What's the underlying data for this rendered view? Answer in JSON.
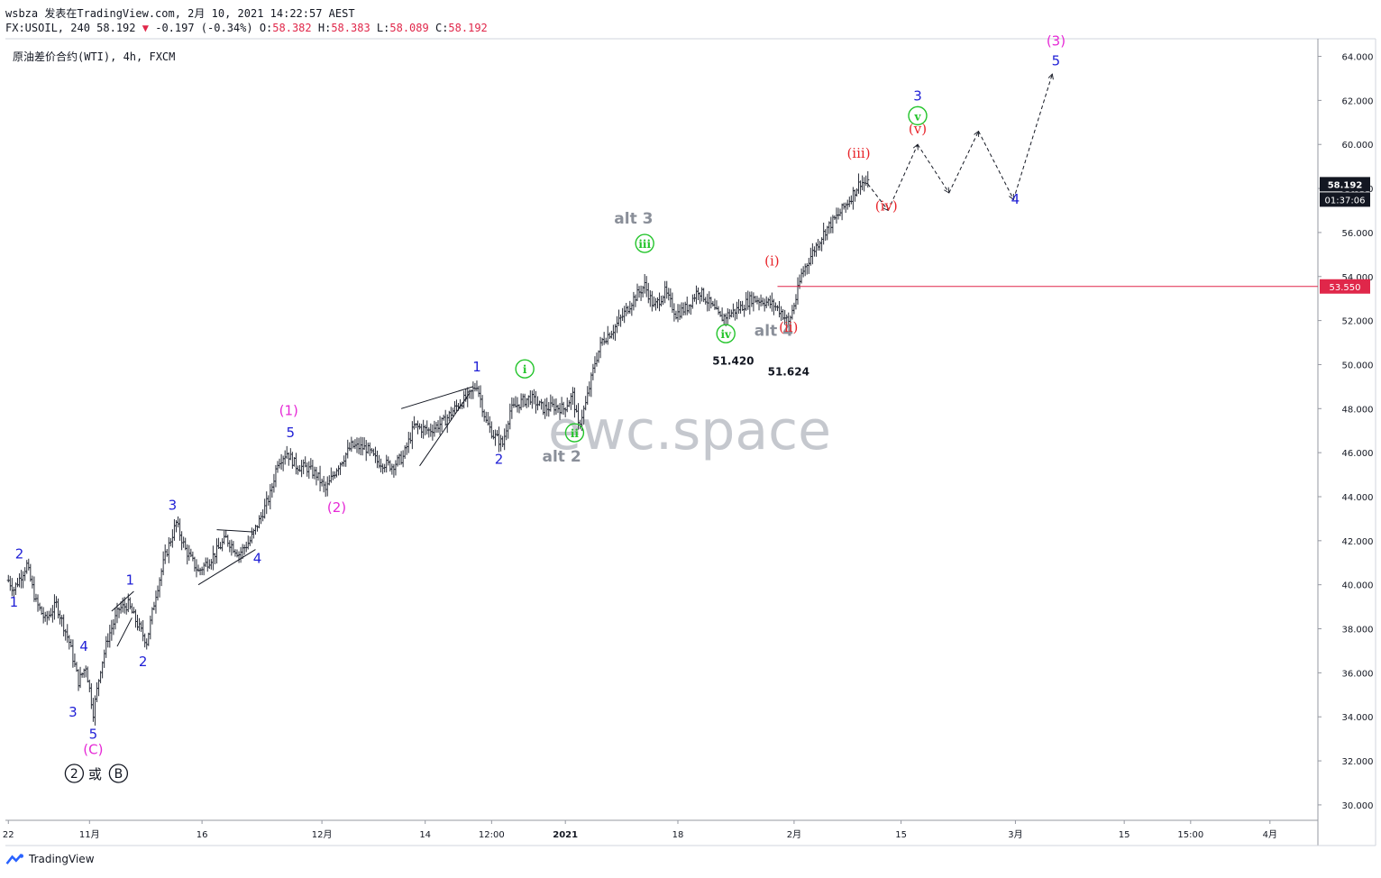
{
  "header": {
    "user": "wsbza",
    "published_text": "发表在TradingView.com, 2月 10, 2021 14:22:57 AEST",
    "symbol": "FX:USOIL, 240",
    "last": "58.192",
    "change": "-0.197 (-0.34%)",
    "ohlc": {
      "o_label": "O:",
      "o": "58.382",
      "h_label": "H:",
      "h": "58.383",
      "l_label": "L:",
      "l": "58.089",
      "c_label": "C:",
      "c": "58.192"
    }
  },
  "symbol_title": "原油差价合约(WTI), 4h, FXCM",
  "watermark": "ewc.space",
  "footer": {
    "brand": "TradingView"
  },
  "colors": {
    "blue": "#1f1fd6",
    "magenta": "#e62ad6",
    "red": "#e8242a",
    "green": "#22c42a",
    "gray": "#8a8f99",
    "price_tag": "#131722",
    "level_line": "#e0274a",
    "bars": "#2a2e39"
  },
  "chart_data": {
    "type": "ohlc",
    "symbol": "USOIL 4h",
    "y_axis": {
      "ticks": [
        "30.000",
        "32.000",
        "34.000",
        "36.000",
        "38.000",
        "40.000",
        "42.000",
        "44.000",
        "46.000",
        "48.000",
        "50.000",
        "52.000",
        "54.000",
        "56.000",
        "58.000",
        "60.000",
        "62.000",
        "64.000"
      ],
      "ylim": [
        29.3,
        64.8
      ]
    },
    "x_axis": {
      "ticks": [
        {
          "label": "22",
          "i": 0
        },
        {
          "label": "11月",
          "i": 44
        },
        {
          "label": "16",
          "i": 105
        },
        {
          "label": "12月",
          "i": 170
        },
        {
          "label": "14",
          "i": 226
        },
        {
          "label": "12:00",
          "i": 262
        },
        {
          "label": "2021",
          "i": 302
        },
        {
          "label": "18",
          "i": 363
        },
        {
          "label": "2月",
          "i": 426
        },
        {
          "label": "15",
          "i": 484
        },
        {
          "label": "3月",
          "i": 546
        },
        {
          "label": "15",
          "i": 605
        },
        {
          "label": "15:00",
          "i": 641
        },
        {
          "label": "4月",
          "i": 684
        }
      ],
      "ilim": [
        -1.6,
        710
      ]
    },
    "anchors": [
      [
        0,
        40.2
      ],
      [
        3,
        39.8
      ],
      [
        10,
        40.9
      ],
      [
        15,
        39.2
      ],
      [
        20,
        38.4
      ],
      [
        26,
        39.1
      ],
      [
        33,
        37.4
      ],
      [
        38,
        35.6
      ],
      [
        42,
        36.3
      ],
      [
        46,
        34.2
      ],
      [
        50,
        36.2
      ],
      [
        54,
        37.6
      ],
      [
        60,
        38.9
      ],
      [
        65,
        39.1
      ],
      [
        70,
        38.2
      ],
      [
        75,
        37.4
      ],
      [
        80,
        39.6
      ],
      [
        85,
        41.3
      ],
      [
        91,
        42.8
      ],
      [
        96,
        41.6
      ],
      [
        103,
        40.6
      ],
      [
        110,
        41.2
      ],
      [
        118,
        42.1
      ],
      [
        125,
        41.4
      ],
      [
        131,
        42.0
      ],
      [
        136,
        42.9
      ],
      [
        142,
        44.1
      ],
      [
        146,
        45.6
      ],
      [
        151,
        46.0
      ],
      [
        156,
        45.4
      ],
      [
        162,
        45.3
      ],
      [
        167,
        45.0
      ],
      [
        172,
        44.3
      ],
      [
        178,
        45.3
      ],
      [
        186,
        46.3
      ],
      [
        194,
        46.2
      ],
      [
        200,
        45.6
      ],
      [
        208,
        45.4
      ],
      [
        214,
        45.8
      ],
      [
        220,
        47.2
      ],
      [
        228,
        47.0
      ],
      [
        236,
        47.4
      ],
      [
        244,
        48.2
      ],
      [
        250,
        48.6
      ],
      [
        254,
        49.1
      ],
      [
        259,
        47.4
      ],
      [
        263,
        46.8
      ],
      [
        268,
        46.4
      ],
      [
        272,
        47.9
      ],
      [
        278,
        48.3
      ],
      [
        283,
        48.5
      ],
      [
        290,
        48.0
      ],
      [
        296,
        48.1
      ],
      [
        301,
        48.0
      ],
      [
        306,
        48.6
      ],
      [
        309,
        47.2
      ],
      [
        313,
        48.2
      ],
      [
        318,
        50.1
      ],
      [
        322,
        51.1
      ],
      [
        328,
        51.6
      ],
      [
        333,
        52.2
      ],
      [
        339,
        53.0
      ],
      [
        345,
        53.6
      ],
      [
        350,
        52.6
      ],
      [
        356,
        53.3
      ],
      [
        362,
        52.3
      ],
      [
        368,
        52.6
      ],
      [
        374,
        53.4
      ],
      [
        380,
        52.8
      ],
      [
        386,
        52.1
      ],
      [
        391,
        52.3
      ],
      [
        397,
        52.6
      ],
      [
        403,
        53.0
      ],
      [
        409,
        52.9
      ],
      [
        415,
        52.7
      ],
      [
        419,
        52.4
      ],
      [
        423,
        51.9
      ],
      [
        427,
        53.0
      ],
      [
        430,
        54.1
      ],
      [
        436,
        55.1
      ],
      [
        443,
        56.1
      ],
      [
        450,
        56.8
      ],
      [
        456,
        57.5
      ],
      [
        462,
        58.3
      ],
      [
        466,
        58.2
      ]
    ],
    "current_price": {
      "value": 58.192,
      "label": "58.192",
      "countdown": "01:37:06"
    },
    "level": {
      "value": 53.55,
      "label": "53.550",
      "i_start": 417
    },
    "price_annotations": [
      {
        "text": "51.420",
        "i": 393,
        "y": 50.0
      },
      {
        "text": "51.624",
        "i": 423,
        "y": 49.5
      }
    ],
    "wave_labels": [
      {
        "text": "1",
        "i": 3,
        "y": 39.0,
        "color": "blue",
        "ring": false
      },
      {
        "text": "2",
        "i": 6,
        "y": 41.2,
        "color": "blue",
        "ring": false
      },
      {
        "text": "3",
        "i": 35,
        "y": 34.0,
        "color": "blue",
        "ring": false
      },
      {
        "text": "4",
        "i": 41,
        "y": 37.0,
        "color": "blue",
        "ring": false
      },
      {
        "text": "5",
        "i": 46,
        "y": 33.0,
        "color": "blue",
        "ring": false
      },
      {
        "text": "(C)",
        "i": 46,
        "y": 32.3,
        "color": "magenta",
        "ring": false
      },
      {
        "text": "1",
        "i": 66,
        "y": 40.0,
        "color": "blue",
        "ring": false
      },
      {
        "text": "2",
        "i": 73,
        "y": 36.3,
        "color": "blue",
        "ring": false
      },
      {
        "text": "3",
        "i": 89,
        "y": 43.4,
        "color": "blue",
        "ring": false
      },
      {
        "text": "4",
        "i": 135,
        "y": 41.0,
        "color": "blue",
        "ring": false
      },
      {
        "text": "5",
        "i": 153,
        "y": 46.7,
        "color": "blue",
        "ring": false
      },
      {
        "text": "(1)",
        "i": 152,
        "y": 47.7,
        "color": "magenta",
        "ring": false
      },
      {
        "text": "(2)",
        "i": 178,
        "y": 43.3,
        "color": "magenta",
        "ring": false
      },
      {
        "text": "1",
        "i": 254,
        "y": 49.7,
        "color": "blue",
        "ring": false
      },
      {
        "text": "2",
        "i": 266,
        "y": 45.5,
        "color": "blue",
        "ring": false
      },
      {
        "text": "i",
        "i": 280,
        "y": 49.6,
        "color": "green",
        "ring": true
      },
      {
        "text": "ii",
        "i": 307,
        "y": 46.7,
        "color": "green",
        "ring": true
      },
      {
        "text": "alt 2",
        "i": 300,
        "y": 45.6,
        "color": "gray",
        "ring": false
      },
      {
        "text": "alt 3",
        "i": 339,
        "y": 56.4,
        "color": "gray",
        "ring": false
      },
      {
        "text": "iii",
        "i": 345,
        "y": 55.3,
        "color": "green",
        "ring": true
      },
      {
        "text": "iv",
        "i": 389,
        "y": 51.2,
        "color": "green",
        "ring": true
      },
      {
        "text": "alt 4",
        "i": 415,
        "y": 51.3,
        "color": "gray",
        "ring": false
      },
      {
        "text": "(i)",
        "i": 414,
        "y": 54.5,
        "color": "red",
        "ring": false
      },
      {
        "text": "(ii)",
        "i": 423,
        "y": 51.5,
        "color": "red",
        "ring": false
      },
      {
        "text": "(iii)",
        "i": 461,
        "y": 59.4,
        "color": "red",
        "ring": false
      },
      {
        "text": "(iv)",
        "i": 476,
        "y": 57.0,
        "color": "red",
        "ring": false
      },
      {
        "text": "(v)",
        "i": 493,
        "y": 60.5,
        "color": "red",
        "ring": false
      },
      {
        "text": "v",
        "i": 493,
        "y": 61.1,
        "color": "green",
        "ring": true
      },
      {
        "text": "3",
        "i": 493,
        "y": 62.0,
        "color": "blue",
        "ring": false
      },
      {
        "text": "4",
        "i": 546,
        "y": 57.3,
        "color": "blue",
        "ring": false
      },
      {
        "text": "5",
        "i": 568,
        "y": 63.6,
        "color": "blue",
        "ring": false
      },
      {
        "text": "(3)",
        "i": 568,
        "y": 64.5,
        "color": "magenta",
        "ring": false
      }
    ],
    "pattern_lines": [
      {
        "i1": 56,
        "y1": 38.8,
        "i2": 68,
        "y2": 39.7
      },
      {
        "i1": 59,
        "y1": 37.2,
        "i2": 67,
        "y2": 38.5
      },
      {
        "i1": 113,
        "y1": 42.5,
        "i2": 133,
        "y2": 42.4
      },
      {
        "i1": 103,
        "y1": 40.0,
        "i2": 134,
        "y2": 41.6
      },
      {
        "i1": 213,
        "y1": 48.0,
        "i2": 252,
        "y2": 49.0
      },
      {
        "i1": 223,
        "y1": 45.4,
        "i2": 250,
        "y2": 48.7
      }
    ],
    "projection": [
      [
        466,
        58.2
      ],
      [
        477,
        57.0
      ],
      [
        493,
        60.0
      ],
      [
        510,
        57.8
      ],
      [
        526,
        60.6
      ],
      [
        545,
        57.5
      ],
      [
        566,
        63.2
      ]
    ],
    "bottom_circles": [
      "2",
      "B"
    ],
    "bottom_circles_joiner": "或"
  }
}
